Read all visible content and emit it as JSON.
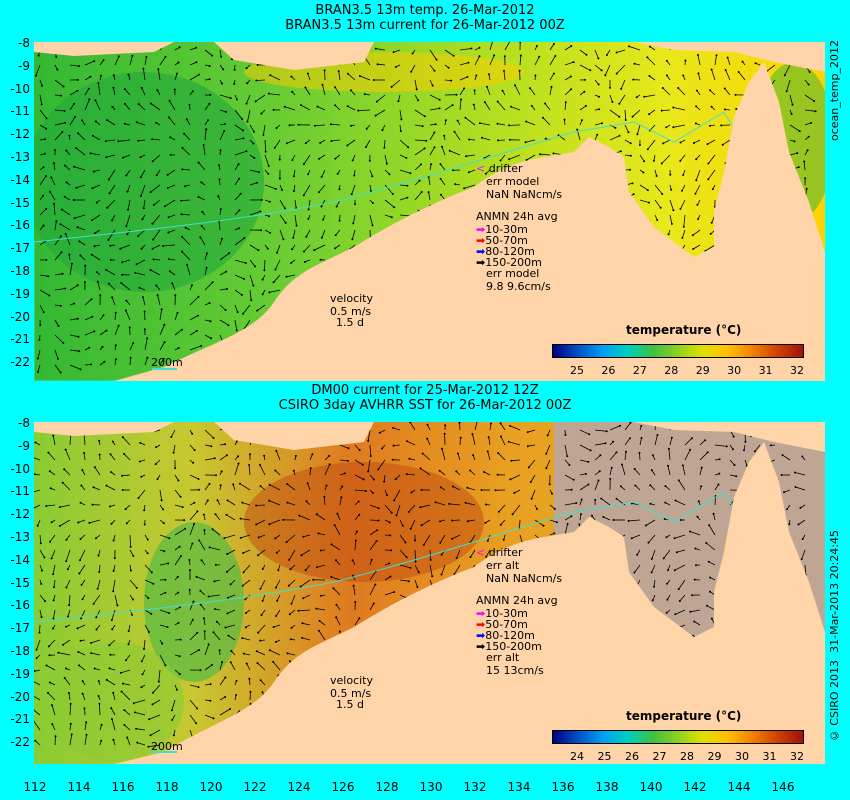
{
  "top": {
    "title1": "BRAN3.5 13m temp. 26-Mar-2012",
    "title2": "BRAN3.5 13m current for 26-Mar-2012 00Z",
    "legend": {
      "drifter": "drifter",
      "err": "err model",
      "err_val": "NaN NaNcm/s",
      "anmn": "ANMN 24h avg",
      "depths": [
        "10-30m",
        "50-70m",
        "80-120m",
        "150-200m"
      ],
      "err2": "err model",
      "err2_val": "9.8 9.6cm/s"
    },
    "velocity": {
      "label": "velocity",
      "speed": "0.5 m/s",
      "time": "1.5 d"
    },
    "isobath": "200m",
    "cbar": {
      "title": "temperature (°C)",
      "ticks": [
        "25",
        "26",
        "27",
        "28",
        "29",
        "30",
        "31",
        "32"
      ]
    }
  },
  "bottom": {
    "title1": "DM00 current for 25-Mar-2012 12Z",
    "title2": "CSIRO 3day AVHRR SST for 26-Mar-2012 00Z",
    "legend": {
      "drifter": "drifter",
      "err": "err alt",
      "err_val": "NaN NaNcm/s",
      "anmn": "ANMN 24h avg",
      "depths": [
        "10-30m",
        "50-70m",
        "80-120m",
        "150-200m"
      ],
      "err2": "err alt",
      "err2_val": "15 13cm/s"
    },
    "velocity": {
      "label": "velocity",
      "speed": "0.5 m/s",
      "time": "1.5 d"
    },
    "isobath": "200m",
    "cbar": {
      "title": "temperature (°C)",
      "ticks": [
        "24",
        "25",
        "26",
        "27",
        "28",
        "29",
        "30",
        "31",
        "32"
      ]
    }
  },
  "y_ticks": [
    "-8",
    "-9",
    "-10",
    "-11",
    "-12",
    "-13",
    "-14",
    "-15",
    "-16",
    "-17",
    "-18",
    "-19",
    "-20",
    "-21",
    "-22"
  ],
  "x_ticks": [
    "112",
    "114",
    "116",
    "118",
    "120",
    "122",
    "124",
    "126",
    "128",
    "130",
    "132",
    "134",
    "136",
    "138",
    "140",
    "142",
    "144",
    "146"
  ],
  "side_top": "ocean_temp_2012",
  "side_bottom": "31-Mar-2013 20:24:45",
  "copyright": "© CSIRO 2013",
  "colors": {
    "background": "#00ffff",
    "land": "#ffd4a8",
    "no_data": "#bfa593",
    "isobath": "#40e0d0"
  }
}
